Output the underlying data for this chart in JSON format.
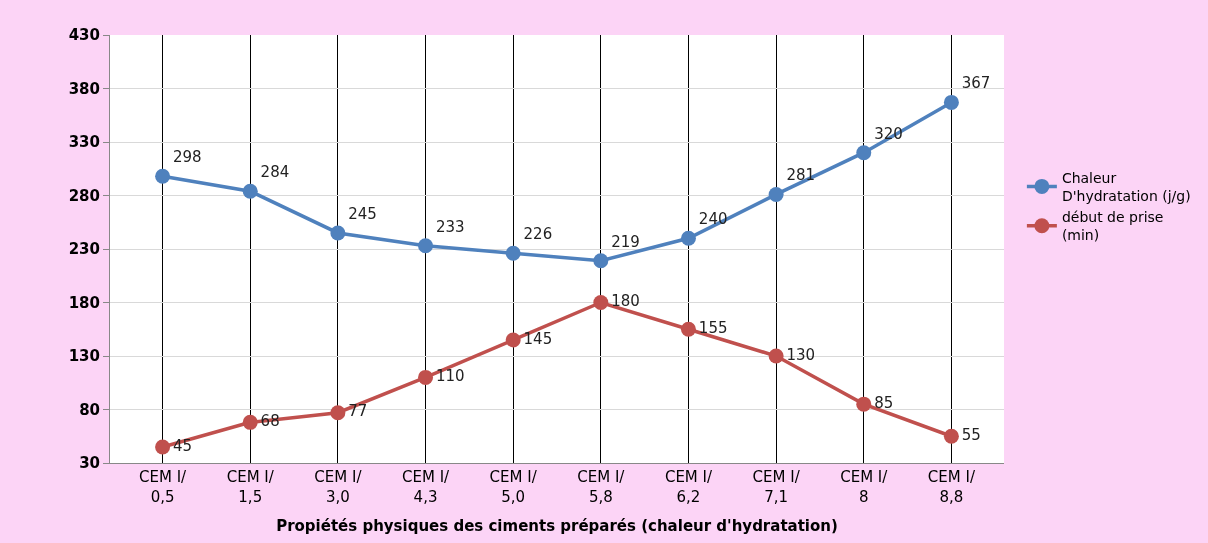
{
  "chart_data": {
    "type": "line",
    "xlabel": "Propiétés physiques des ciments préparés (chaleur d'hydratation)",
    "categories": [
      "CEM I/\n0,5",
      "CEM I/\n1,5",
      "CEM I/\n3,0",
      "CEM I/\n4,3",
      "CEM I/\n5,0",
      "CEM I/\n5,8",
      "CEM I/\n6,2",
      "CEM I/\n7,1",
      "CEM I/\n8",
      "CEM I/\n8,8"
    ],
    "series": [
      {
        "name": "Chaleur\nD'hydratation (j/g)",
        "color": "#4f81bd",
        "values": [
          298,
          284,
          245,
          233,
          226,
          219,
          240,
          281,
          320,
          367
        ]
      },
      {
        "name": "début de prise\n(min)",
        "color": "#c0504d",
        "values": [
          45,
          68,
          77,
          110,
          145,
          180,
          155,
          130,
          85,
          55
        ]
      }
    ],
    "ylim": [
      30,
      430
    ],
    "yticks": [
      30,
      80,
      130,
      180,
      230,
      280,
      330,
      380,
      430
    ],
    "grid": true,
    "legend": "right",
    "marker": "circle",
    "line_style": "solid",
    "data_labels": true
  }
}
